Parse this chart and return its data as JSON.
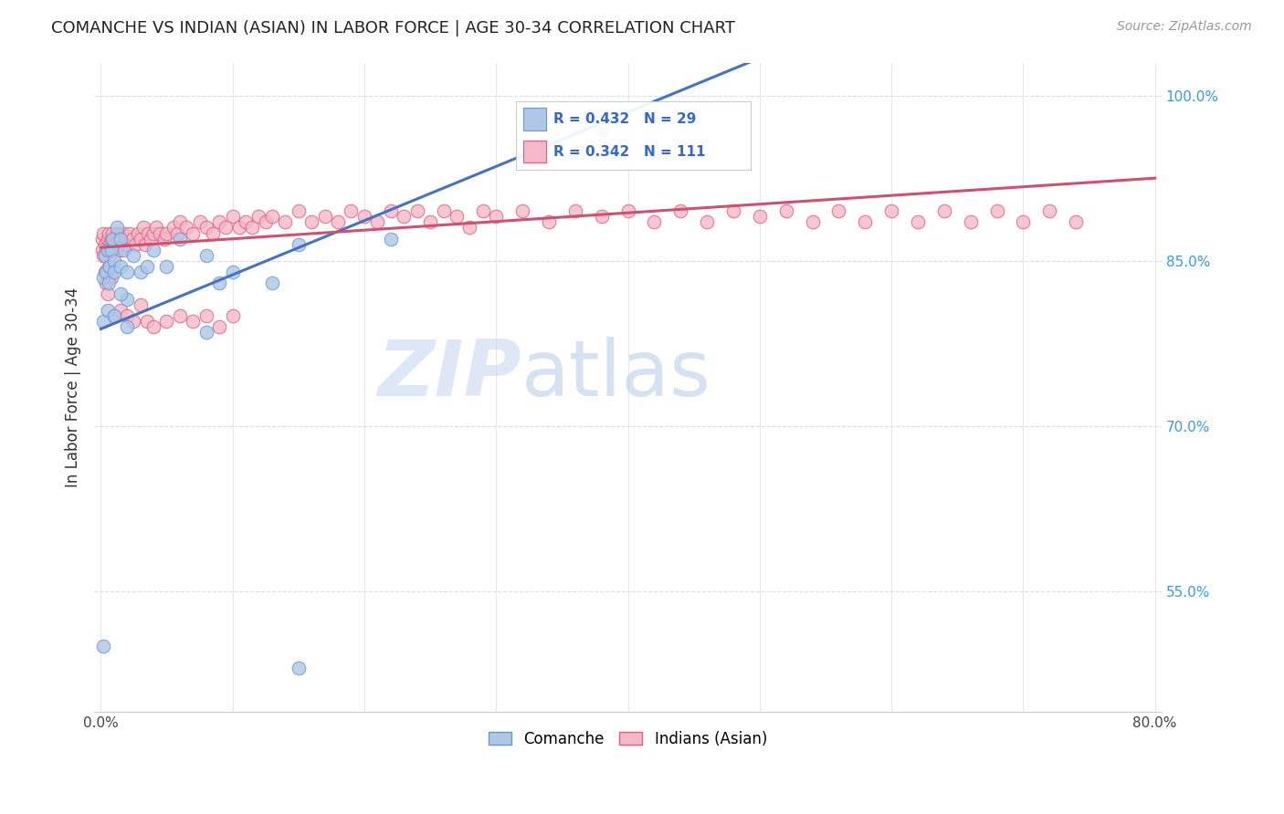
{
  "title": "COMANCHE VS INDIAN (ASIAN) IN LABOR FORCE | AGE 30-34 CORRELATION CHART",
  "source_text": "Source: ZipAtlas.com",
  "ylabel": "In Labor Force | Age 30-34",
  "xlim": [
    -0.005,
    0.805
  ],
  "ylim": [
    0.44,
    1.03
  ],
  "x_ticks": [
    0.0,
    0.1,
    0.2,
    0.3,
    0.4,
    0.5,
    0.6,
    0.7,
    0.8
  ],
  "x_tick_labels": [
    "0.0%",
    "",
    "",
    "",
    "",
    "",
    "",
    "",
    "80.0%"
  ],
  "y_ticks_right": [
    0.55,
    0.7,
    0.85,
    1.0
  ],
  "y_tick_labels_right": [
    "55.0%",
    "70.0%",
    "85.0%",
    "100.0%"
  ],
  "grid_color": "#dddddd",
  "background_color": "#ffffff",
  "comanche_color": "#aec6e8",
  "comanche_edge_color": "#6699cc",
  "indian_color": "#f4b8c8",
  "indian_edge_color": "#e06080",
  "blue_line_color": "#4472c4",
  "pink_line_color": "#d05070",
  "watermark_zip": "ZIP",
  "watermark_atlas": "atlas",
  "watermark_color_zip": "#c8d8f0",
  "watermark_color_atlas": "#a0b8d8",
  "legend_comanche_R": "R = 0.432",
  "legend_comanche_N": "N = 29",
  "legend_indian_R": "R = 0.342",
  "legend_indian_N": "N = 111",
  "comanche_x": [
    0.002,
    0.003,
    0.004,
    0.005,
    0.006,
    0.007,
    0.008,
    0.009,
    0.01,
    0.01,
    0.012,
    0.015,
    0.015,
    0.018,
    0.02,
    0.02,
    0.025,
    0.03,
    0.035,
    0.04,
    0.05,
    0.06,
    0.08,
    0.09,
    0.1,
    0.13,
    0.15,
    0.22,
    0.38
  ],
  "comanche_y": [
    0.835,
    0.855,
    0.84,
    0.86,
    0.83,
    0.845,
    0.86,
    0.87,
    0.85,
    0.84,
    0.88,
    0.87,
    0.845,
    0.86,
    0.84,
    0.815,
    0.855,
    0.84,
    0.845,
    0.86,
    0.845,
    0.87,
    0.855,
    0.83,
    0.84,
    0.83,
    0.865,
    0.87,
    0.97
  ],
  "comanche_outlier_x": [
    0.002,
    0.005,
    0.01,
    0.015,
    0.02,
    0.08,
    0.002,
    0.15
  ],
  "comanche_outlier_y": [
    0.795,
    0.805,
    0.8,
    0.82,
    0.79,
    0.785,
    0.5,
    0.48
  ],
  "indian_x": [
    0.001,
    0.002,
    0.003,
    0.004,
    0.005,
    0.006,
    0.007,
    0.008,
    0.009,
    0.01,
    0.011,
    0.012,
    0.013,
    0.014,
    0.015,
    0.016,
    0.017,
    0.018,
    0.019,
    0.02,
    0.022,
    0.024,
    0.026,
    0.028,
    0.03,
    0.032,
    0.034,
    0.036,
    0.038,
    0.04,
    0.042,
    0.045,
    0.048,
    0.05,
    0.055,
    0.058,
    0.06,
    0.065,
    0.07,
    0.075,
    0.08,
    0.085,
    0.09,
    0.095,
    0.1,
    0.105,
    0.11,
    0.115,
    0.12,
    0.125,
    0.13,
    0.14,
    0.15,
    0.16,
    0.17,
    0.18,
    0.19,
    0.2,
    0.21,
    0.22,
    0.23,
    0.24,
    0.25,
    0.26,
    0.27,
    0.28,
    0.29,
    0.3,
    0.32,
    0.34,
    0.36,
    0.38,
    0.4,
    0.42,
    0.44,
    0.46,
    0.48,
    0.5,
    0.52,
    0.54,
    0.56,
    0.58,
    0.6,
    0.62,
    0.64,
    0.66,
    0.68,
    0.7,
    0.72,
    0.74,
    0.001,
    0.002,
    0.003,
    0.004,
    0.005,
    0.006,
    0.007,
    0.008,
    0.01,
    0.015,
    0.02,
    0.025,
    0.03,
    0.035,
    0.04,
    0.05,
    0.06,
    0.07,
    0.08,
    0.09,
    0.1
  ],
  "indian_y": [
    0.87,
    0.875,
    0.865,
    0.86,
    0.87,
    0.875,
    0.865,
    0.87,
    0.875,
    0.87,
    0.865,
    0.875,
    0.87,
    0.86,
    0.875,
    0.87,
    0.865,
    0.875,
    0.87,
    0.865,
    0.875,
    0.87,
    0.865,
    0.875,
    0.87,
    0.88,
    0.865,
    0.875,
    0.87,
    0.875,
    0.88,
    0.875,
    0.87,
    0.875,
    0.88,
    0.875,
    0.885,
    0.88,
    0.875,
    0.885,
    0.88,
    0.875,
    0.885,
    0.88,
    0.89,
    0.88,
    0.885,
    0.88,
    0.89,
    0.885,
    0.89,
    0.885,
    0.895,
    0.885,
    0.89,
    0.885,
    0.895,
    0.89,
    0.885,
    0.895,
    0.89,
    0.895,
    0.885,
    0.895,
    0.89,
    0.88,
    0.895,
    0.89,
    0.895,
    0.885,
    0.895,
    0.89,
    0.895,
    0.885,
    0.895,
    0.885,
    0.895,
    0.89,
    0.895,
    0.885,
    0.895,
    0.885,
    0.895,
    0.885,
    0.895,
    0.885,
    0.895,
    0.885,
    0.895,
    0.885,
    0.86,
    0.855,
    0.84,
    0.83,
    0.82,
    0.845,
    0.855,
    0.835,
    0.8,
    0.805,
    0.8,
    0.795,
    0.81,
    0.795,
    0.79,
    0.795,
    0.8,
    0.795,
    0.8,
    0.79,
    0.8
  ],
  "blue_line_x0": 0.0,
  "blue_line_y0": 0.788,
  "blue_line_x1": 0.38,
  "blue_line_y1": 0.975,
  "pink_line_x0": 0.0,
  "pink_line_y0": 0.862,
  "pink_line_x1": 0.8,
  "pink_line_y1": 0.925
}
